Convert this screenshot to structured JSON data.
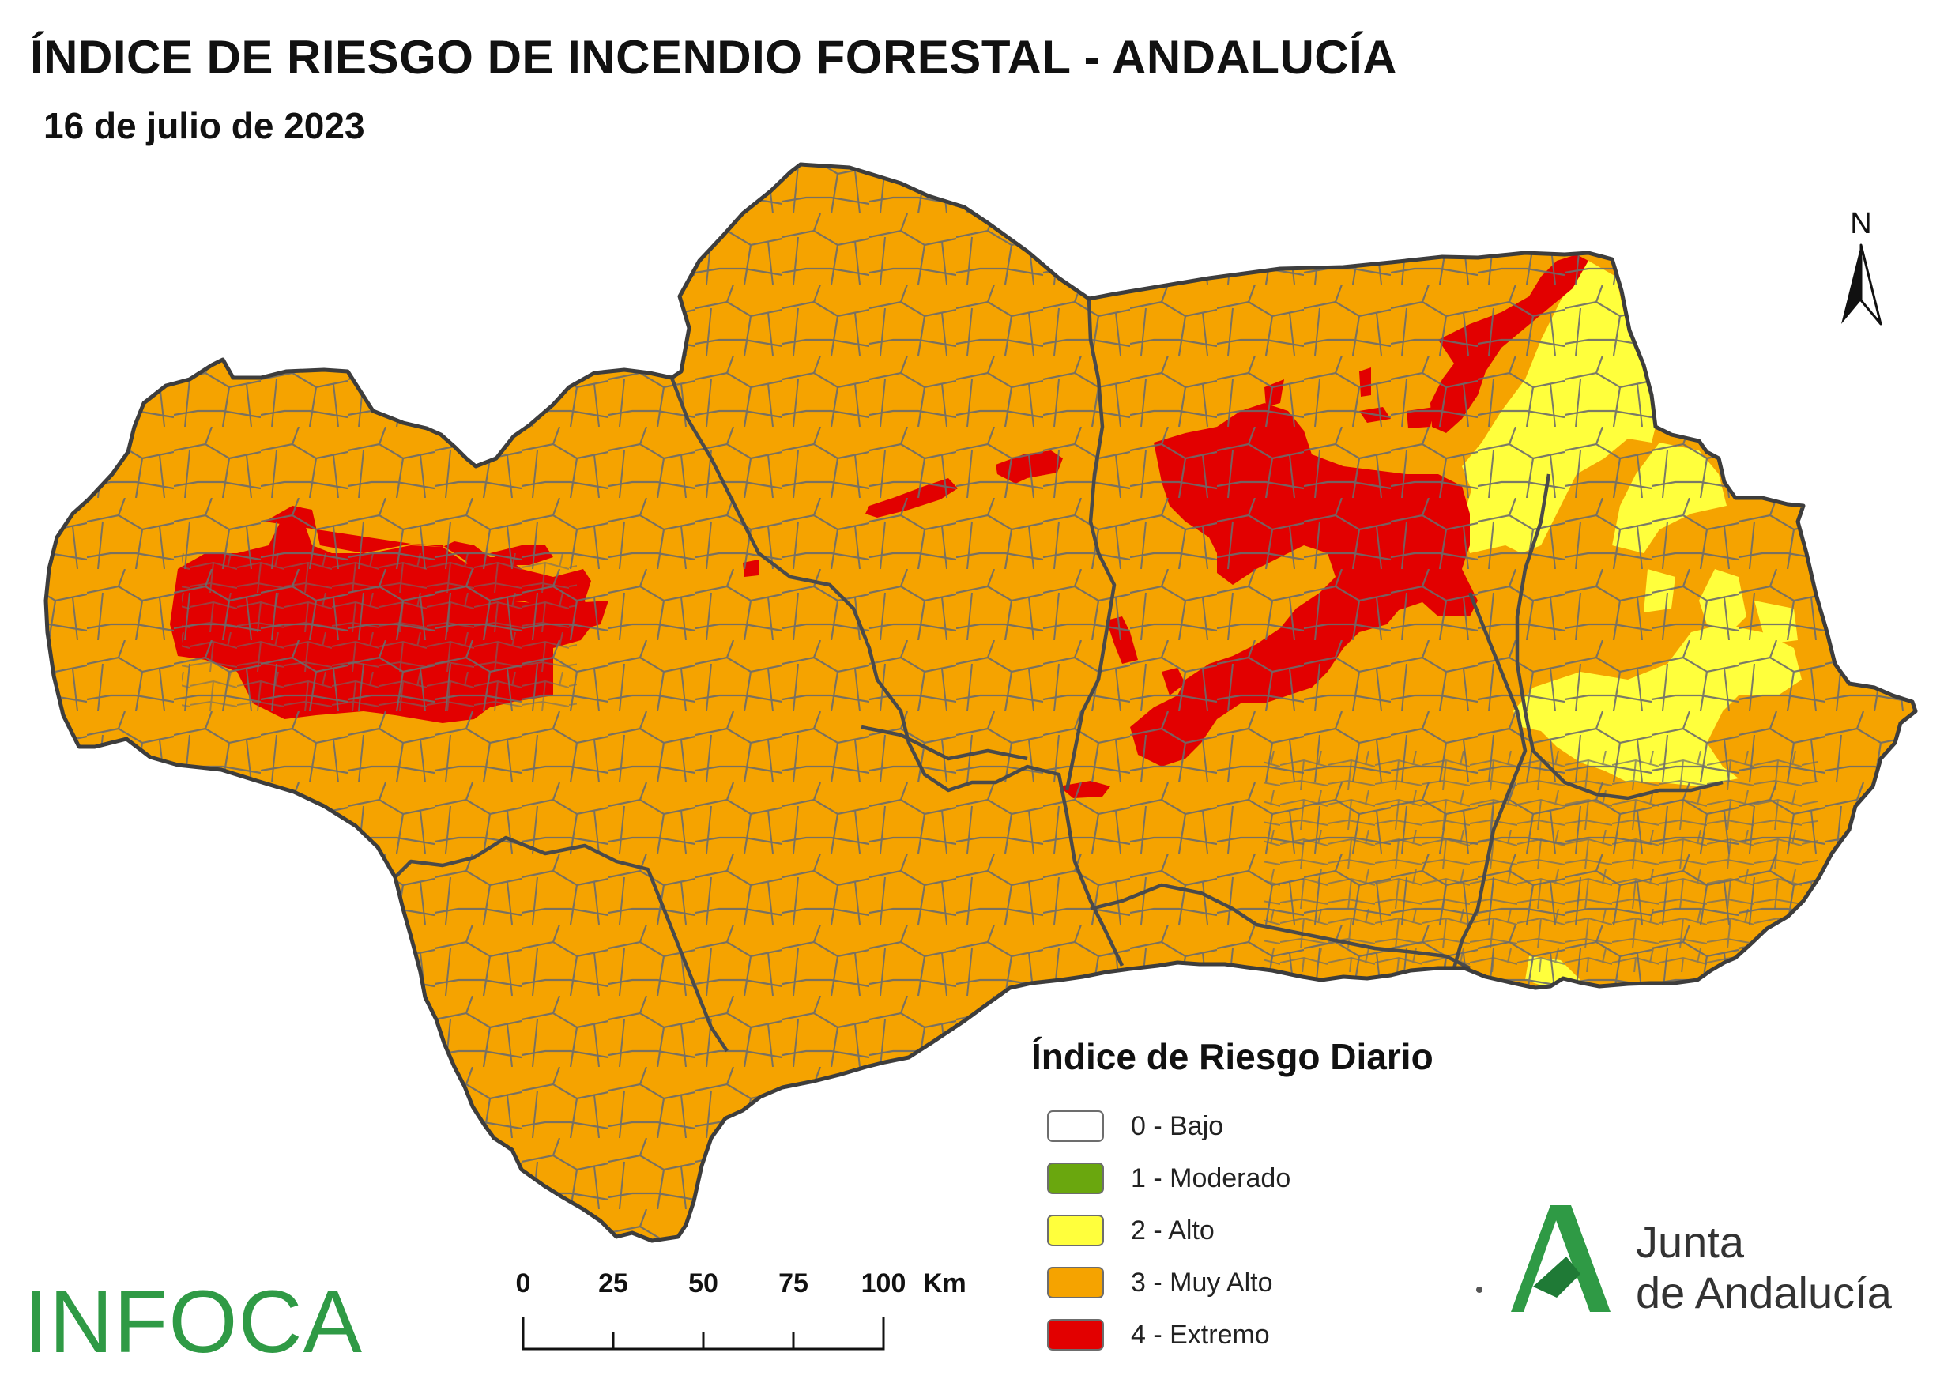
{
  "map": {
    "title": "ÍNDICE DE RIESGO DE INCENDIO FORESTAL - ANDALUCÍA",
    "subtitle": "16 de julio de 2023",
    "region_name": "Andalucía",
    "north_label": "N"
  },
  "legend": {
    "title": "Índice de Riesgo Diario",
    "items": [
      {
        "label": "0 - Bajo",
        "color": "#ffffff"
      },
      {
        "label": "1 - Moderado",
        "color": "#6aa70e"
      },
      {
        "label": "2 - Alto",
        "color": "#ffff3c"
      },
      {
        "label": "3 - Muy Alto",
        "color": "#f5a300"
      },
      {
        "label": "4 - Extremo",
        "color": "#e20000"
      }
    ]
  },
  "colors": {
    "muy_alto": "#f5a300",
    "alto": "#ffff3c",
    "extremo": "#e20000",
    "border": "#555555",
    "logo_green": "#2f9a45"
  },
  "scalebar": {
    "ticks": [
      "0",
      "25",
      "50",
      "75",
      "100"
    ],
    "unit": "Km"
  },
  "branding": {
    "infoca": "INFOCA",
    "junta_line1": "Junta",
    "junta_line2": "de Andalucía"
  }
}
